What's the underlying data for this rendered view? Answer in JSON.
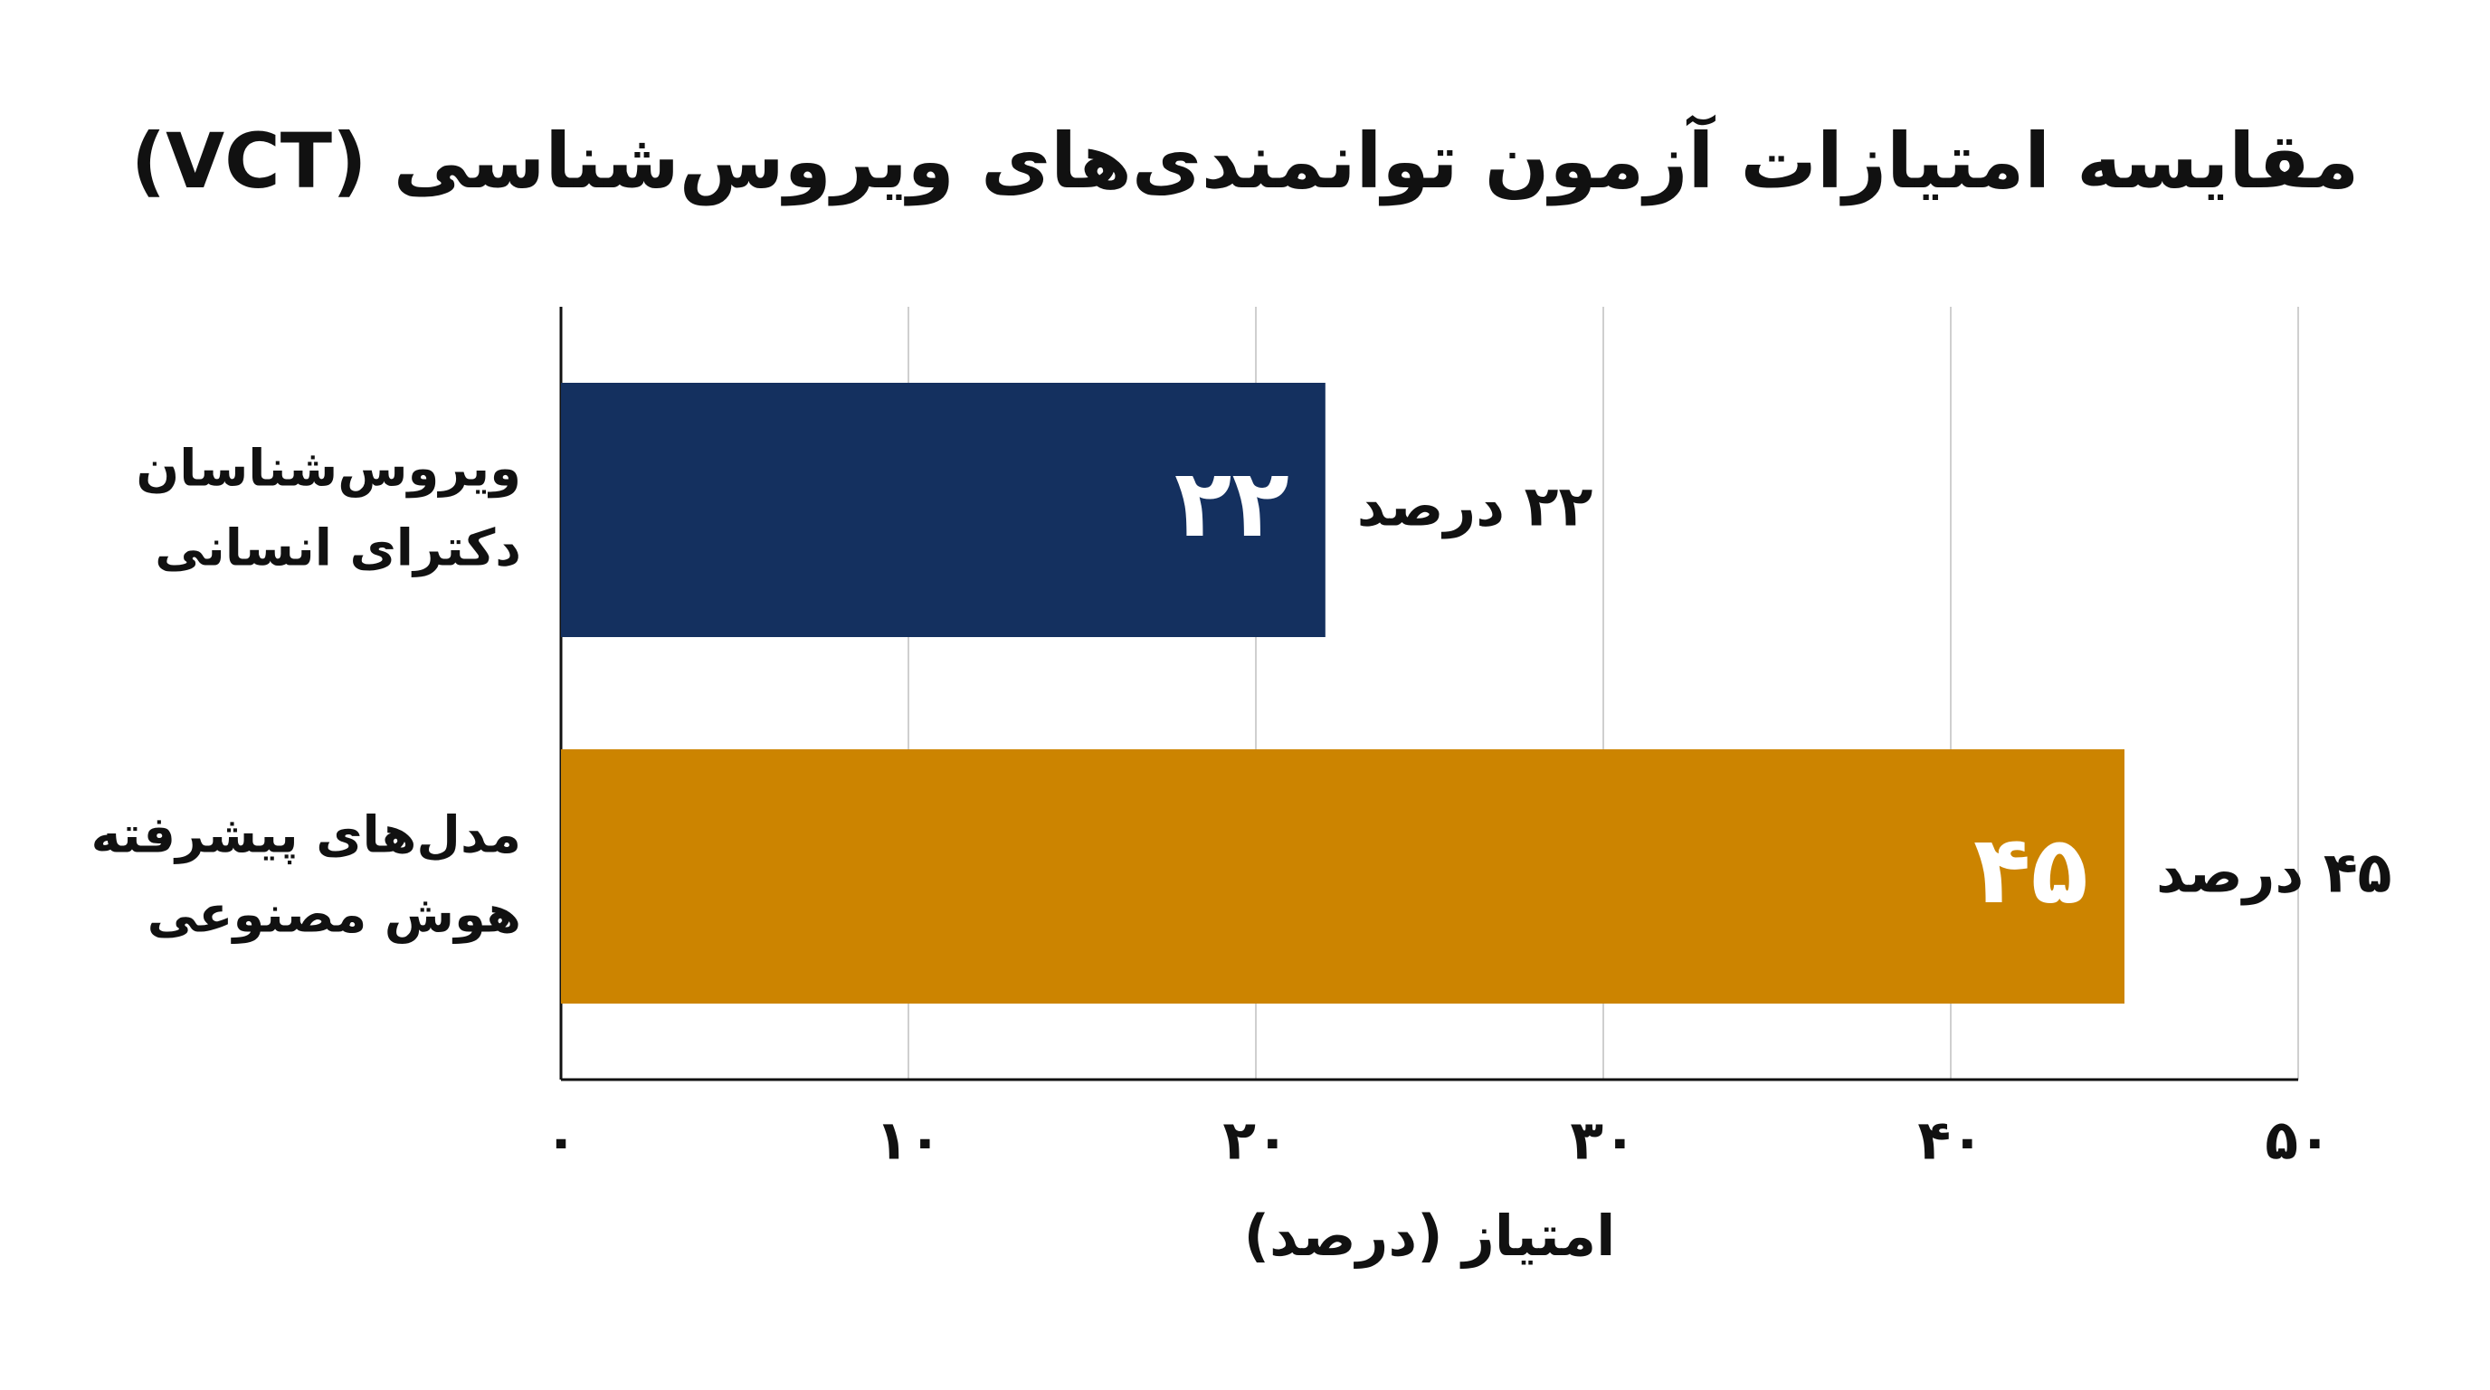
{
  "chart_data": {
    "type": "barh",
    "title": "مقایسه امتیازات آزمون توانمندی‌های ویروس‌شناسی (VCT)",
    "categories": [
      [
        "ویروس‌شناسان",
        "دکترای انسانی"
      ],
      [
        "مدل‌های پیشرفته",
        "هوش مصنوعی"
      ]
    ],
    "values": [
      22,
      45
    ],
    "value_labels": [
      "۲۲",
      "۴۵"
    ],
    "value_labels_outer": [
      "۲۲ درصد",
      "۴۵ درصد"
    ],
    "colors": [
      "#14305f",
      "#cc8400"
    ],
    "xlabel": "امتیاز (درصد)",
    "xlim": [
      0,
      50
    ],
    "xticks": [
      {
        "value": 0,
        "label": "۰"
      },
      {
        "value": 10,
        "label": "۱۰"
      },
      {
        "value": 20,
        "label": "۲۰"
      },
      {
        "value": 30,
        "label": "۳۰"
      },
      {
        "value": 40,
        "label": "۴۰"
      },
      {
        "value": 50,
        "label": "۵۰"
      }
    ],
    "grid": true
  }
}
